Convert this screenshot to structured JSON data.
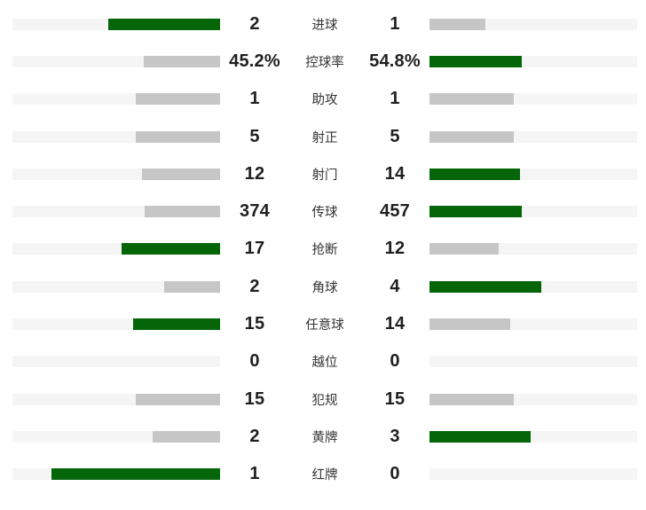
{
  "colors": {
    "leading_bar": "#056609",
    "neutral_bar": "#c6c6c6",
    "bar_track": "#f5f5f6",
    "value_text": "#1f1f1f",
    "label_text": "#333333",
    "background": "#ffffff"
  },
  "chart_data": {
    "type": "bar",
    "layout": "bidirectional-comparison",
    "title": "",
    "bar_scale_max_fraction": 0.81,
    "categories": [
      "进球",
      "控球率",
      "助攻",
      "射正",
      "射门",
      "传球",
      "抢断",
      "角球",
      "任意球",
      "越位",
      "犯规",
      "黄牌",
      "红牌"
    ],
    "keys": [
      "goals",
      "possession",
      "assists",
      "shots-on-target",
      "shots",
      "passes",
      "tackles",
      "corners",
      "free-kicks",
      "offsides",
      "fouls",
      "yellow-cards",
      "red-cards"
    ],
    "series": [
      {
        "name": "home",
        "side": "left",
        "values": [
          2,
          45.2,
          1,
          5,
          12,
          374,
          17,
          2,
          15,
          0,
          15,
          2,
          1
        ],
        "display": [
          "2",
          "45.2%",
          "1",
          "5",
          "12",
          "374",
          "17",
          "2",
          "15",
          "0",
          "15",
          "2",
          "1"
        ]
      },
      {
        "name": "away",
        "side": "right",
        "values": [
          1,
          54.8,
          1,
          5,
          14,
          457,
          12,
          4,
          14,
          0,
          15,
          3,
          0
        ],
        "display": [
          "1",
          "54.8%",
          "1",
          "5",
          "14",
          "457",
          "12",
          "4",
          "14",
          "0",
          "15",
          "3",
          "0"
        ]
      }
    ]
  }
}
